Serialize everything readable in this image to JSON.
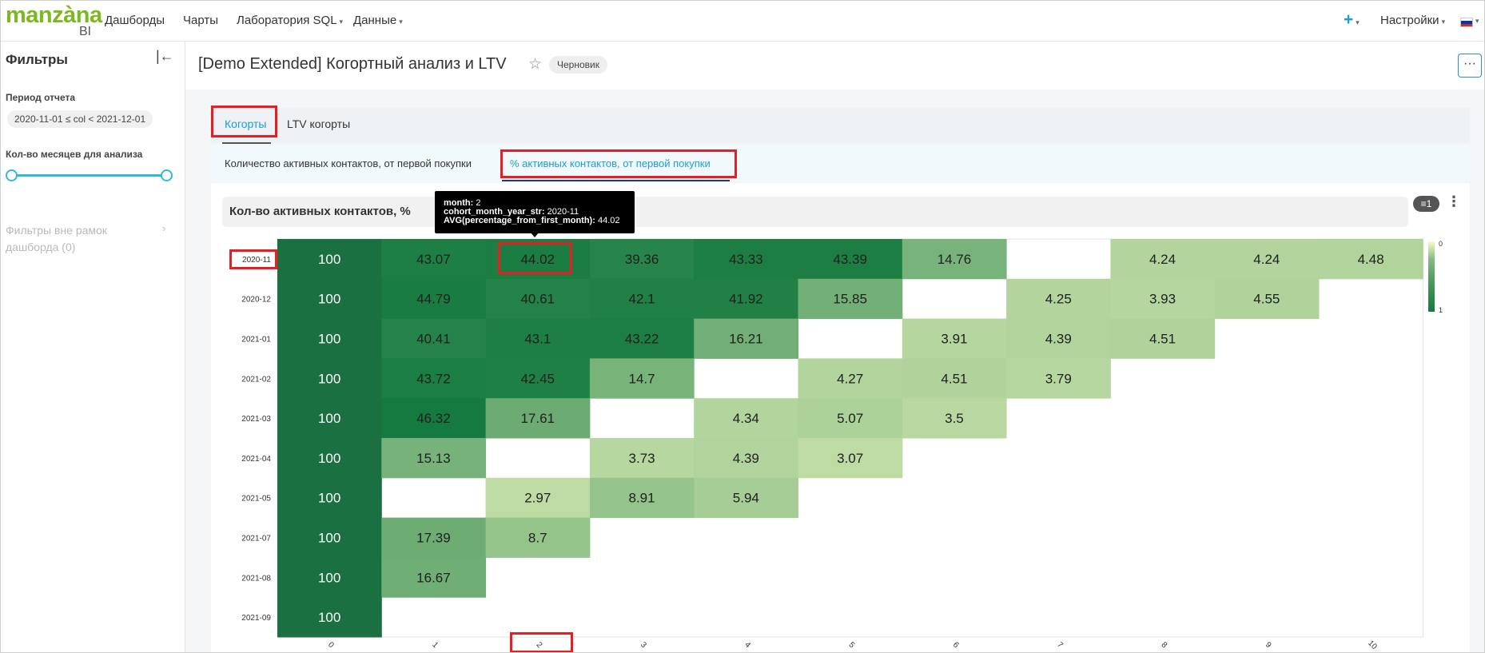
{
  "header": {
    "logo_word": "manzàna",
    "logo_bi": "BI",
    "nav": [
      {
        "label": "Дашборды",
        "caret": false
      },
      {
        "label": "Чарты",
        "caret": false
      },
      {
        "label": "Лаборатория SQL",
        "caret": true
      },
      {
        "label": "Данные",
        "caret": true
      }
    ],
    "plus": "+",
    "settings_label": "Настройки",
    "caret_glyph": "▾",
    "flag_colors": [
      "#ffffff",
      "#0039a6",
      "#d52b1e"
    ]
  },
  "sidebar": {
    "title": "Фильтры",
    "collapse_glyph": "|←",
    "period_label": "Период отчета",
    "period_value": "2020-11-01 ≤ col < 2021-12-01",
    "months_label": "Кол-во месяцев для анализа",
    "slider_range": [
      0,
      1
    ],
    "outside_filters": "Фильтры вне рамок дашборда (0)",
    "chevron_glyph": "›"
  },
  "dashboard": {
    "title": "[Demo Extended] Когортный анализ и LTV",
    "star_glyph": "☆",
    "badge": "Черновик",
    "more_glyph": "···"
  },
  "tabs": {
    "level1": [
      "Когорты",
      "LTV когорты"
    ],
    "level2": [
      "Количество активных контактов, от первой покупки",
      "% активных контактов, от первой покупки"
    ]
  },
  "chart": {
    "title": "Кол-во активных контактов, %",
    "filter_badge": "1",
    "kebab": "⋮",
    "tooltip": {
      "k1": "month:",
      "v1": "2",
      "k2": "cohort_month_year_str:",
      "v2": "2020-11",
      "k3": "AVG(percentage_from_first_month):",
      "v3": "44.02"
    }
  },
  "chart_data": {
    "type": "heatmap",
    "title": "Кол-во активных контактов, %",
    "x": [
      "0",
      "1",
      "2",
      "3",
      "4",
      "5",
      "6",
      "7",
      "8",
      "9",
      "10"
    ],
    "y": [
      "2020-11",
      "2020-12",
      "2021-01",
      "2021-02",
      "2021-03",
      "2021-04",
      "2021-05",
      "2021-07",
      "2021-08",
      "2021-09"
    ],
    "values": [
      [
        100,
        43.07,
        44.02,
        39.36,
        43.33,
        43.39,
        14.76,
        null,
        4.24,
        4.24,
        4.48
      ],
      [
        100,
        44.79,
        40.61,
        42.1,
        41.92,
        15.85,
        null,
        4.25,
        3.93,
        4.55,
        null
      ],
      [
        100,
        40.41,
        43.1,
        43.22,
        16.21,
        null,
        3.91,
        4.39,
        4.51,
        null,
        null
      ],
      [
        100,
        43.72,
        42.45,
        14.7,
        null,
        4.27,
        4.51,
        3.79,
        null,
        null,
        null
      ],
      [
        100,
        46.32,
        17.61,
        null,
        4.34,
        5.07,
        3.5,
        null,
        null,
        null,
        null
      ],
      [
        100,
        15.13,
        null,
        3.73,
        4.39,
        3.07,
        null,
        null,
        null,
        null,
        null
      ],
      [
        100,
        null,
        2.97,
        8.91,
        5.94,
        null,
        null,
        null,
        null,
        null,
        null
      ],
      [
        100,
        17.39,
        8.7,
        null,
        null,
        null,
        null,
        null,
        null,
        null,
        null
      ],
      [
        100,
        16.67,
        null,
        null,
        null,
        null,
        null,
        null,
        null,
        null,
        null
      ],
      [
        100,
        null,
        null,
        null,
        null,
        null,
        null,
        null,
        null,
        null,
        null
      ]
    ],
    "legend": {
      "labels": [
        "0",
        "1"
      ],
      "placement": "right"
    },
    "colors": {
      "low": "#f7fcc6",
      "high": "#157a3f",
      "top": "#1a7040"
    }
  }
}
